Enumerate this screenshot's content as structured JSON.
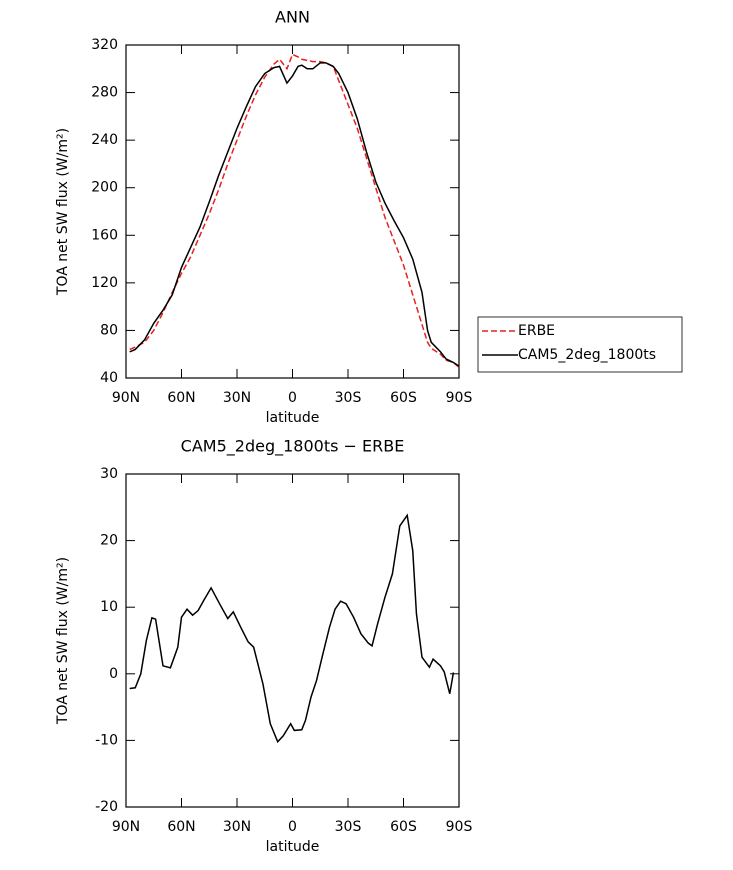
{
  "chart_data": [
    {
      "type": "line",
      "title": "ANN",
      "xlabel": "latitude",
      "ylabel": "TOA net SW flux (W/m²)",
      "x": [
        88,
        85,
        80,
        75,
        70,
        65,
        60,
        55,
        50,
        45,
        40,
        35,
        30,
        25,
        20,
        15,
        10,
        7,
        3,
        0,
        -3,
        -5,
        -8,
        -11,
        -15,
        -18,
        -22,
        -25,
        -30,
        -35,
        -40,
        -45,
        -50,
        -55,
        -60,
        -65,
        -70,
        -73,
        -75,
        -80,
        -83,
        -87,
        -90
      ],
      "xlim": [
        90,
        -90
      ],
      "xticks": [
        {
          "value": 90,
          "label": "90N"
        },
        {
          "value": 60,
          "label": "60N"
        },
        {
          "value": 30,
          "label": "30N"
        },
        0,
        {
          "value": -30,
          "label": "30S"
        },
        {
          "value": -60,
          "label": "60S"
        },
        {
          "value": -90,
          "label": "90S"
        }
      ],
      "ylim": [
        40,
        320
      ],
      "yticks": [
        40,
        80,
        120,
        160,
        200,
        240,
        280,
        320
      ],
      "legend": "right",
      "series": [
        {
          "name": "ERBE",
          "color": "#e8201e",
          "dashed": true,
          "values": [
            64,
            66,
            70,
            80,
            95,
            112,
            128,
            142,
            160,
            178,
            198,
            220,
            240,
            260,
            278,
            293,
            304,
            308,
            300,
            312,
            310,
            308,
            307,
            306,
            306,
            305,
            302,
            290,
            270,
            250,
            225,
            200,
            175,
            155,
            135,
            110,
            85,
            70,
            65,
            60,
            55,
            53,
            49
          ]
        },
        {
          "name": "CAM5_2deg_1800ts",
          "color": "#000000",
          "dashed": false,
          "values": [
            62,
            64,
            72,
            86,
            97,
            110,
            133,
            150,
            167,
            188,
            210,
            230,
            250,
            268,
            285,
            296,
            301,
            302,
            288,
            294,
            302,
            303,
            300,
            300,
            305,
            305,
            302,
            296,
            280,
            258,
            230,
            205,
            187,
            172,
            158,
            140,
            112,
            80,
            70,
            62,
            56,
            53,
            50
          ]
        }
      ]
    },
    {
      "type": "line",
      "title": "CAM5_2deg_1800ts − ERBE",
      "xlabel": "latitude",
      "ylabel": "TOA net SW flux (W/m²)",
      "x": [
        88,
        85,
        82,
        79,
        76,
        74,
        70,
        66,
        62,
        60,
        57,
        54,
        51,
        48,
        44,
        39,
        35,
        32,
        28,
        24,
        21,
        16,
        12,
        8,
        5,
        1,
        -1,
        -5,
        -7,
        -10,
        -13,
        -16,
        -20,
        -23,
        -26,
        -29,
        -33,
        -37,
        -41,
        -43,
        -46,
        -50,
        -54,
        -58,
        -62,
        -65,
        -67,
        -70,
        -74,
        -76,
        -80,
        -82,
        -85,
        -87
      ],
      "xlim": [
        90,
        -90
      ],
      "xticks": [
        {
          "value": 90,
          "label": "90N"
        },
        {
          "value": 60,
          "label": "60N"
        },
        {
          "value": 30,
          "label": "30N"
        },
        0,
        {
          "value": -30,
          "label": "30S"
        },
        {
          "value": -60,
          "label": "60S"
        },
        {
          "value": -90,
          "label": "90S"
        }
      ],
      "ylim": [
        -20,
        30
      ],
      "yticks": [
        -20,
        -10,
        0,
        10,
        20,
        30
      ],
      "series": [
        {
          "color": "#000000",
          "dashed": false,
          "values": [
            -2.2,
            -2.1,
            0,
            5,
            8.4,
            8.2,
            1.2,
            0.9,
            4,
            8.5,
            9.7,
            8.8,
            9.5,
            11,
            12.9,
            10.3,
            8.3,
            9.3,
            7,
            4.8,
            4,
            -1.5,
            -7.5,
            -10.2,
            -9.3,
            -7.5,
            -8.5,
            -8.4,
            -7,
            -3.5,
            -1,
            2.5,
            7,
            9.7,
            10.9,
            10.5,
            8.5,
            6,
            4.6,
            4.2,
            7.5,
            11.5,
            15,
            22.2,
            23.8,
            18.5,
            9,
            2.5,
            1,
            2.2,
            1.2,
            0.3,
            -3,
            0.2
          ]
        }
      ]
    }
  ]
}
